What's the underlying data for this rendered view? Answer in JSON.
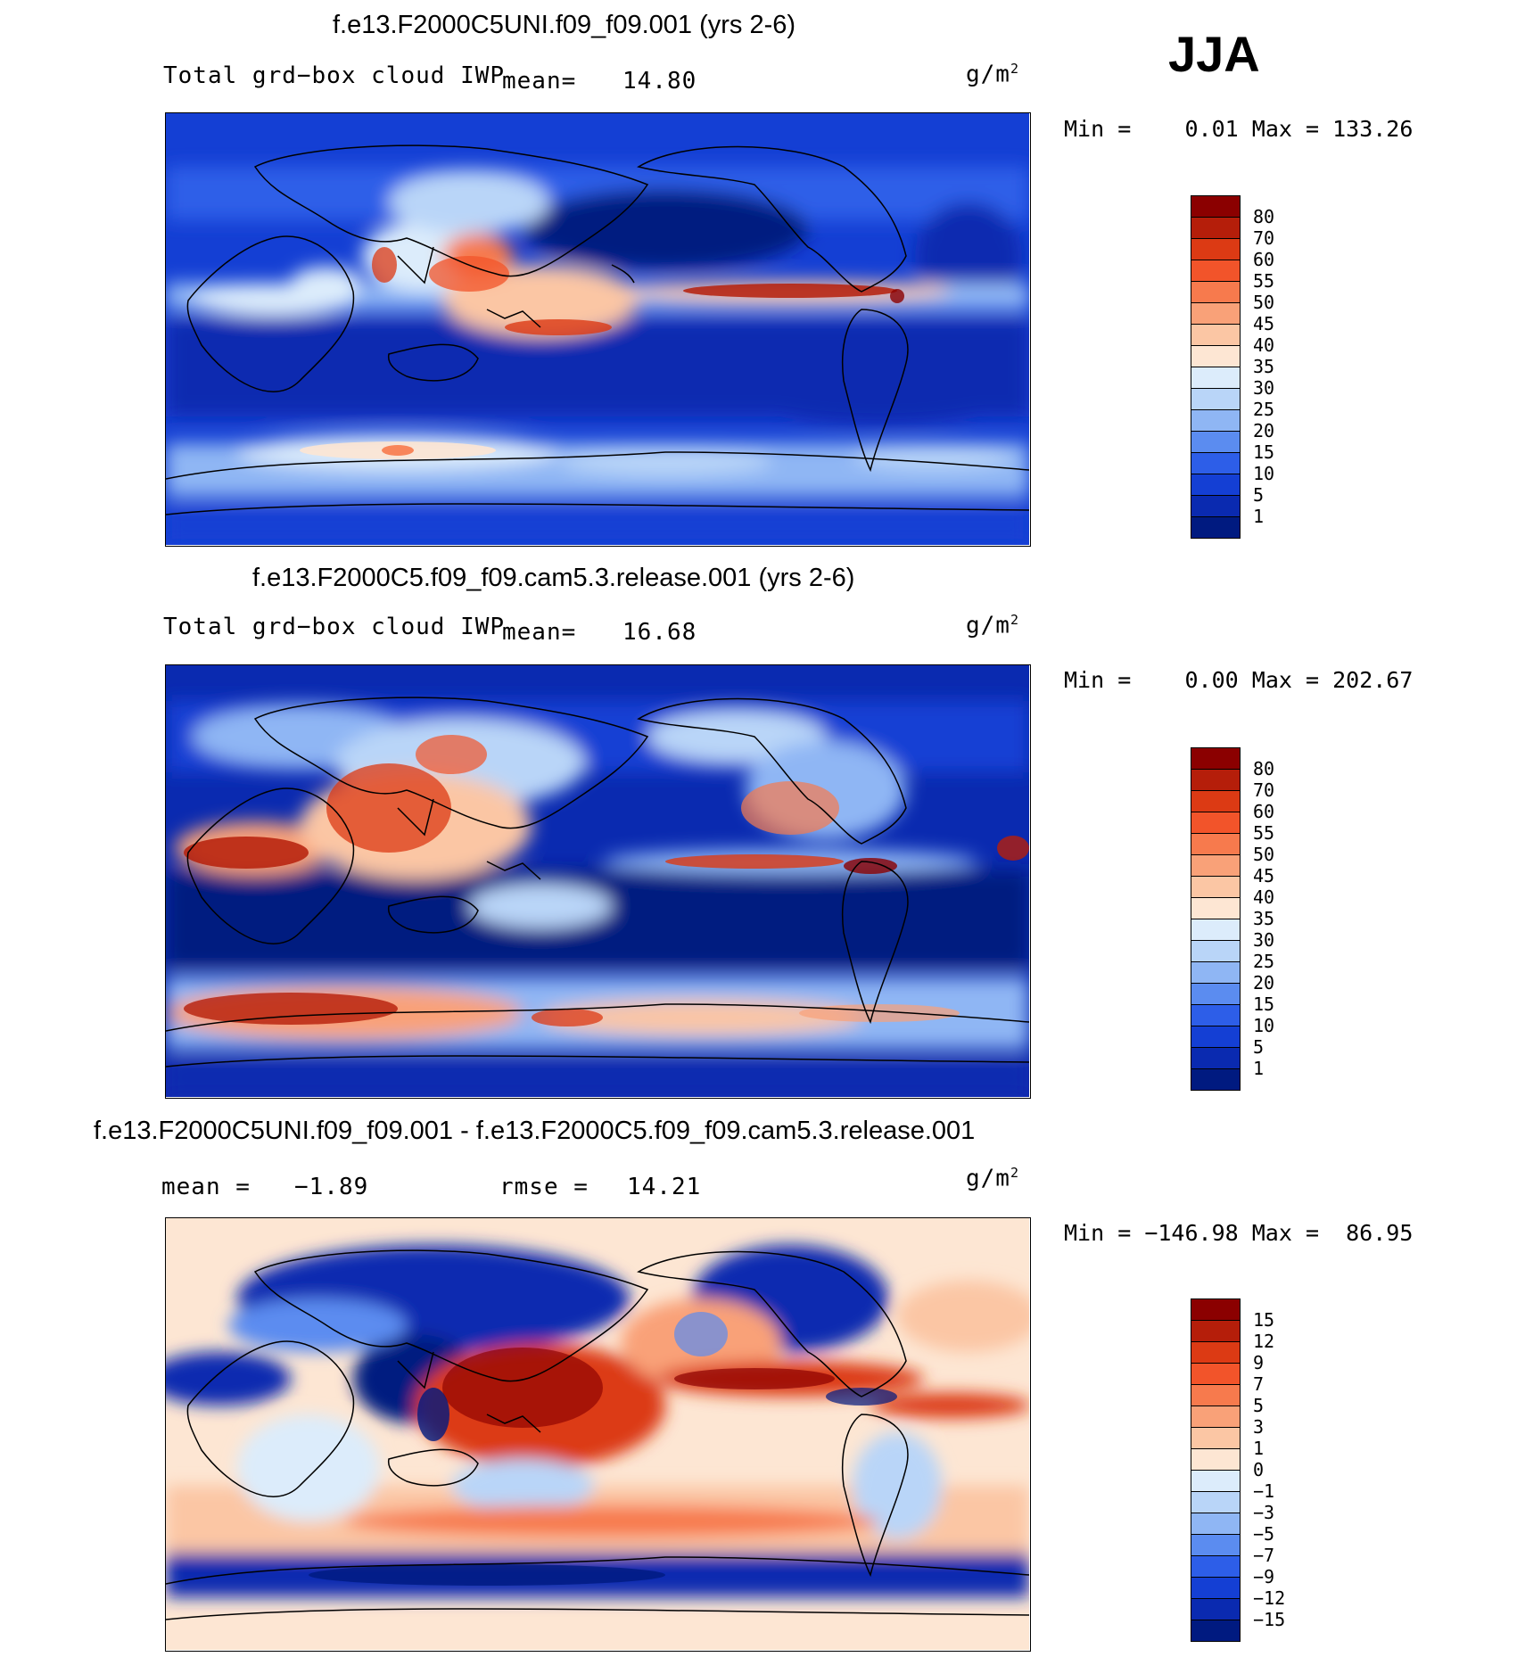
{
  "season": "JJA",
  "chart_data": [
    {
      "type": "heatmap",
      "title": "f.e13.F2000C5UNI.f09_f09.001 (yrs 2-6)",
      "variable": "Total grd−box cloud IWP",
      "mean_label": "mean=",
      "mean_value": "14.80",
      "units": "g/m",
      "units_exp": "2",
      "min_label": "Min =",
      "min_value": "0.01",
      "max_label": "Max =",
      "max_value": "133.26",
      "colorbar": {
        "labels": [
          "80",
          "70",
          "60",
          "55",
          "50",
          "45",
          "40",
          "35",
          "30",
          "25",
          "20",
          "15",
          "10",
          "5",
          "1"
        ],
        "colors": [
          "#8b0000",
          "#b51e0a",
          "#dc3a14",
          "#f2542a",
          "#f77a4d",
          "#f9a178",
          "#fbc6a4",
          "#fde6d3",
          "#dcecfb",
          "#b9d5f8",
          "#8fb6f4",
          "#5b8cf0",
          "#2d5ee8",
          "#143fd4",
          "#0a2ab0",
          "#001a80"
        ]
      }
    },
    {
      "type": "heatmap",
      "title": "f.e13.F2000C5.f09_f09.cam5.3.release.001 (yrs 2-6)",
      "variable": "Total grd−box cloud IWP",
      "mean_label": "mean=",
      "mean_value": "16.68",
      "units": "g/m",
      "units_exp": "2",
      "min_label": "Min =",
      "min_value": "0.00",
      "max_label": "Max =",
      "max_value": "202.67",
      "colorbar": {
        "labels": [
          "80",
          "70",
          "60",
          "55",
          "50",
          "45",
          "40",
          "35",
          "30",
          "25",
          "20",
          "15",
          "10",
          "5",
          "1"
        ],
        "colors": [
          "#8b0000",
          "#b51e0a",
          "#dc3a14",
          "#f2542a",
          "#f77a4d",
          "#f9a178",
          "#fbc6a4",
          "#fde6d3",
          "#dcecfb",
          "#b9d5f8",
          "#8fb6f4",
          "#5b8cf0",
          "#2d5ee8",
          "#143fd4",
          "#0a2ab0",
          "#001a80"
        ]
      }
    },
    {
      "type": "heatmap",
      "title": "f.e13.F2000C5UNI.f09_f09.001 - f.e13.F2000C5.f09_f09.cam5.3.release.001",
      "mean_label": "mean =",
      "mean_value": "−1.89",
      "rmse_label": "rmse =",
      "rmse_value": "14.21",
      "units": "g/m",
      "units_exp": "2",
      "min_label": "Min =",
      "min_value": "−146.98",
      "max_label": "Max =",
      "max_value": "86.95",
      "colorbar": {
        "labels": [
          "15",
          "12",
          "9",
          "7",
          "5",
          "3",
          "1",
          "0",
          "−1",
          "−3",
          "−5",
          "−7",
          "−9",
          "−12",
          "−15"
        ],
        "colors": [
          "#8b0000",
          "#b51e0a",
          "#dc3a14",
          "#f2542a",
          "#f77a4d",
          "#f9a178",
          "#fbc6a4",
          "#fde6d3",
          "#dcecfb",
          "#b9d5f8",
          "#8fb6f4",
          "#5b8cf0",
          "#2d5ee8",
          "#143fd4",
          "#0a2ab0",
          "#001a80"
        ]
      }
    }
  ]
}
